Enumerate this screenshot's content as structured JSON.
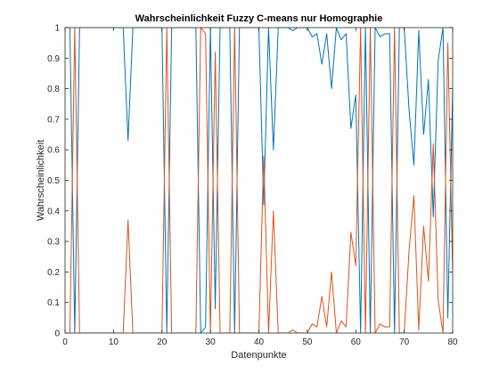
{
  "chart_data": {
    "type": "line",
    "title": "Wahrscheinlichkeit Fuzzy C-means nur Homographie",
    "xlabel": "Datenpunkte",
    "ylabel": "Wahrscheinlichkeit",
    "xlim": [
      0,
      80
    ],
    "ylim": [
      0,
      1
    ],
    "xticks": [
      "0",
      "10",
      "20",
      "30",
      "40",
      "50",
      "60",
      "70",
      "80"
    ],
    "yticks": [
      "0",
      "0.1",
      "0.2",
      "0.3",
      "0.4",
      "0.5",
      "0.6",
      "0.7",
      "0.8",
      "0.9",
      "1"
    ],
    "grid": false,
    "legend": "none",
    "x": [
      1,
      2,
      3,
      4,
      5,
      6,
      7,
      8,
      9,
      10,
      11,
      12,
      13,
      14,
      15,
      16,
      17,
      18,
      19,
      20,
      21,
      22,
      23,
      24,
      25,
      26,
      27,
      28,
      29,
      30,
      31,
      32,
      33,
      34,
      35,
      36,
      37,
      38,
      39,
      40,
      41,
      42,
      43,
      44,
      45,
      46,
      47,
      48,
      49,
      50,
      51,
      52,
      53,
      54,
      55,
      56,
      57,
      58,
      59,
      60,
      61,
      62,
      63,
      64,
      65,
      66,
      67,
      68,
      69,
      70,
      71,
      72,
      73,
      74,
      75,
      76,
      77,
      78,
      79,
      80
    ],
    "series": [
      {
        "color": "#0072bd",
        "values": [
          1,
          0,
          1,
          1,
          1,
          1,
          1,
          1,
          1,
          1,
          1,
          1,
          0.63,
          1,
          1,
          1,
          1,
          1,
          1,
          1,
          0,
          1,
          1,
          1,
          1,
          1,
          1,
          0,
          0.02,
          1,
          0.08,
          1,
          1,
          1,
          0,
          1,
          1,
          1,
          1,
          1,
          0.42,
          1,
          0.6,
          1,
          1,
          1,
          0.99,
          1,
          1,
          1,
          0.97,
          0.98,
          0.88,
          0.98,
          0.8,
          1,
          0.96,
          0.98,
          0.67,
          0.78,
          0,
          1,
          0,
          1,
          0.97,
          0.98,
          0.98,
          0,
          1,
          1,
          0.73,
          0.55,
          0.99,
          0.65,
          0.83,
          0.38,
          0.89,
          1,
          0.05,
          0.8
        ]
      },
      {
        "color": "#d95319",
        "values": [
          0,
          1,
          0,
          0,
          0,
          0,
          0,
          0,
          0,
          0,
          0,
          0,
          0.37,
          0,
          0,
          0,
          0,
          0,
          0,
          0,
          1,
          0,
          0,
          0,
          0,
          0,
          0,
          1,
          0.98,
          0,
          0.92,
          0,
          0,
          0,
          1,
          0,
          0,
          0,
          0,
          0,
          0.58,
          0,
          0.4,
          0,
          0,
          0,
          0.01,
          0,
          0,
          0,
          0.03,
          0.02,
          0.12,
          0.02,
          0.2,
          0,
          0.04,
          0.02,
          0.33,
          0.22,
          1,
          0,
          1,
          0,
          0.03,
          0.02,
          0.02,
          1,
          0,
          0,
          0.27,
          0.45,
          0.01,
          0.35,
          0.17,
          0.62,
          0.11,
          0,
          0.95,
          0.2
        ]
      }
    ]
  }
}
